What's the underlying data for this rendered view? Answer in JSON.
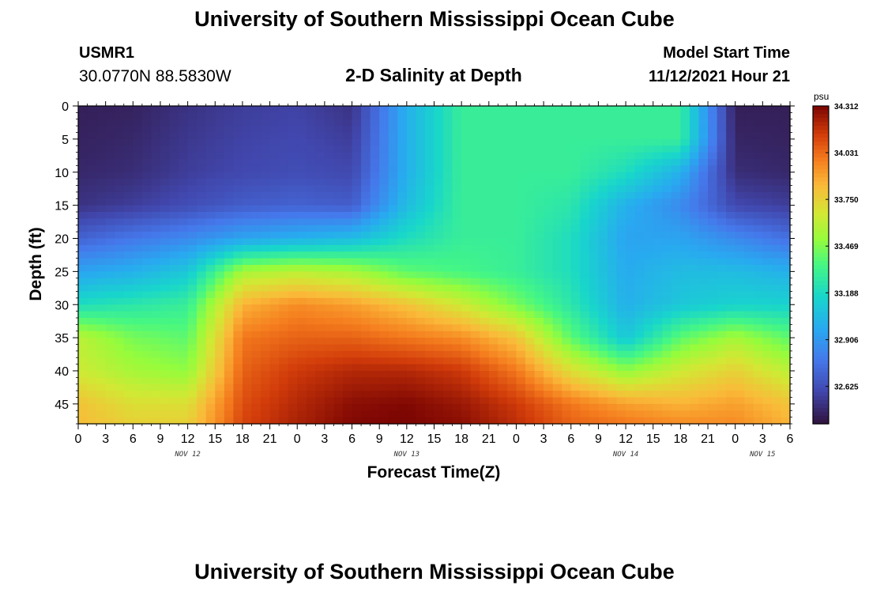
{
  "header": {
    "title": "University of Southern Mississippi Ocean Cube",
    "station_id": "USMR1",
    "coords": "30.0770N  88.5830W",
    "chart_title": "2-D Salinity at Depth",
    "start_label": "Model Start Time",
    "start_value": "11/12/2021 Hour 21"
  },
  "footer": {
    "title": "University of Southern Mississippi Ocean Cube"
  },
  "chart_data": {
    "type": "heatmap",
    "title": "2-D Salinity at Depth",
    "xlabel": "Forecast Time(Z)",
    "ylabel": "Depth (ft)",
    "x_range": [
      0,
      78
    ],
    "y_range": [
      0,
      48
    ],
    "y_inverted": true,
    "x_ticks": [
      0,
      3,
      6,
      9,
      12,
      15,
      18,
      21,
      24,
      27,
      30,
      33,
      36,
      39,
      42,
      45,
      48,
      51,
      54,
      57,
      60,
      63,
      66,
      69,
      72,
      75,
      78
    ],
    "x_tick_labels": [
      "0",
      "3",
      "6",
      "9",
      "12",
      "15",
      "18",
      "21",
      "0",
      "3",
      "6",
      "9",
      "12",
      "15",
      "18",
      "21",
      "0",
      "3",
      "6",
      "9",
      "12",
      "15",
      "18",
      "21",
      "0",
      "3",
      "6"
    ],
    "y_ticks": [
      0,
      5,
      10,
      15,
      20,
      25,
      30,
      35,
      40,
      45
    ],
    "y_tick_labels": [
      "0",
      "5",
      "10",
      "15",
      "20",
      "25",
      "30",
      "35",
      "40",
      "45"
    ],
    "date_labels": [
      {
        "hour": 12,
        "label": "NOV 12"
      },
      {
        "hour": 36,
        "label": "NOV 13"
      },
      {
        "hour": 60,
        "label": "NOV 14"
      },
      {
        "hour": 75,
        "label": "NOV 15"
      }
    ],
    "colorbar": {
      "unit": "psu",
      "min": 32.4,
      "max": 34.312,
      "tick_values": [
        34.312,
        34.031,
        33.75,
        33.469,
        33.188,
        32.906,
        32.625
      ],
      "tick_labels": [
        "34.312",
        "34.031",
        "33.750",
        "33.469",
        "33.188",
        "32.906",
        "32.625"
      ]
    },
    "grid_x_hours": [
      0,
      6,
      12,
      18,
      24,
      30,
      36,
      42,
      48,
      54,
      60,
      66,
      72,
      78
    ],
    "grid_y_depths": [
      0,
      5,
      10,
      15,
      20,
      25,
      30,
      35,
      40,
      45,
      48
    ],
    "salinity_psu": [
      [
        32.45,
        32.46,
        32.52,
        32.56,
        32.58,
        32.52,
        33.0,
        33.3,
        33.3,
        33.3,
        33.3,
        33.3,
        32.45,
        32.45
      ],
      [
        32.46,
        32.48,
        32.54,
        32.58,
        32.6,
        32.56,
        33.0,
        33.3,
        33.3,
        33.3,
        33.3,
        33.3,
        32.47,
        32.46
      ],
      [
        32.48,
        32.5,
        32.56,
        32.6,
        32.62,
        32.6,
        33.0,
        33.3,
        33.3,
        33.3,
        33.2,
        33.0,
        32.5,
        32.48
      ],
      [
        32.52,
        32.56,
        32.62,
        32.68,
        32.7,
        32.68,
        33.05,
        33.3,
        33.3,
        33.25,
        33.0,
        32.85,
        32.6,
        32.56
      ],
      [
        32.7,
        32.78,
        32.85,
        32.95,
        33.0,
        33.05,
        33.2,
        33.3,
        33.3,
        33.2,
        32.95,
        32.95,
        32.85,
        32.75
      ],
      [
        32.95,
        33.0,
        33.1,
        33.55,
        33.6,
        33.55,
        33.4,
        33.35,
        33.3,
        33.2,
        32.98,
        33.05,
        33.05,
        33.0
      ],
      [
        33.2,
        33.25,
        33.3,
        33.85,
        33.95,
        33.9,
        33.8,
        33.65,
        33.45,
        33.25,
        33.0,
        33.1,
        33.15,
        33.15
      ],
      [
        33.6,
        33.45,
        33.4,
        34.0,
        34.05,
        34.05,
        34.0,
        33.95,
        33.8,
        33.4,
        33.1,
        33.4,
        33.55,
        33.4
      ],
      [
        33.65,
        33.55,
        33.5,
        34.05,
        34.15,
        34.2,
        34.2,
        34.15,
        34.0,
        33.7,
        33.5,
        33.65,
        33.75,
        33.6
      ],
      [
        33.8,
        33.7,
        33.7,
        34.1,
        34.2,
        34.28,
        34.3,
        34.25,
        34.15,
        34.0,
        33.9,
        33.85,
        33.9,
        33.8
      ],
      [
        33.82,
        33.75,
        33.75,
        34.12,
        34.22,
        34.3,
        34.31,
        34.28,
        34.18,
        34.05,
        34.0,
        33.95,
        33.95,
        33.85
      ]
    ]
  }
}
